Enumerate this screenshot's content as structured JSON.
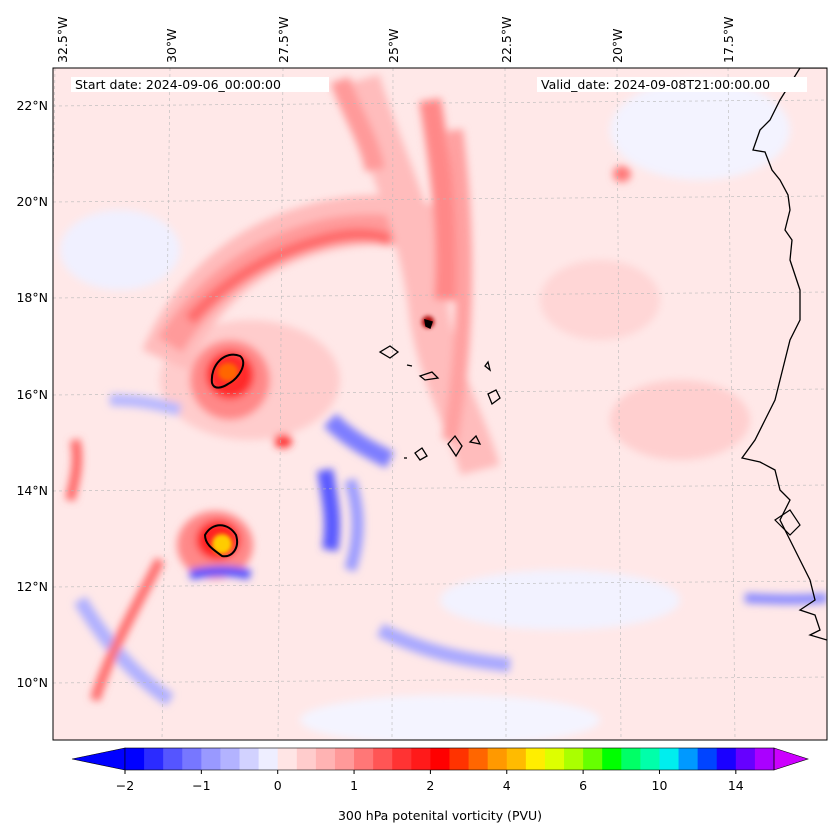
{
  "map": {
    "title_left": "Start date: 2024-09-06_00:00:00",
    "title_right": "Valid_date: 2024-09-08T21:00:00.00",
    "lon_labels": [
      "32.5°W",
      "30°W",
      "27.5°W",
      "25°W",
      "22.5°W",
      "20°W",
      "17.5°W"
    ],
    "lat_labels": [
      "22°N",
      "20°N",
      "18°N",
      "16°N",
      "14°N",
      "12°N",
      "10°N"
    ],
    "lon_range": [
      -33.0,
      -15.5
    ],
    "lat_range": [
      8.9,
      22.8
    ]
  },
  "colorbar": {
    "label": "300 hPa potenital vorticity (PVU)",
    "tick_labels": [
      "−2",
      "−1",
      "0",
      "1",
      "2",
      "4",
      "6",
      "10",
      "14"
    ],
    "colors": [
      "#0000ff",
      "#2b2bff",
      "#5555ff",
      "#7777ff",
      "#9999ff",
      "#b3b3ff",
      "#d2d2ff",
      "#eeeeff",
      "#ffe5e5",
      "#ffcccc",
      "#ffb3b3",
      "#ff9999",
      "#ff7777",
      "#ff5555",
      "#ff3333",
      "#ff1a1a",
      "#ff0000",
      "#ff3300",
      "#ff6600",
      "#ff9900",
      "#ffbb00",
      "#ffee00",
      "#ddff00",
      "#aaff00",
      "#66ff00",
      "#00ff00",
      "#00ff66",
      "#00ffaa",
      "#00eeee",
      "#0099ff",
      "#0044ff",
      "#1a00ff",
      "#6600ff",
      "#aa00ff"
    ],
    "extend_low_color": "#0000ff",
    "extend_high_color": "#cc00ff"
  }
}
